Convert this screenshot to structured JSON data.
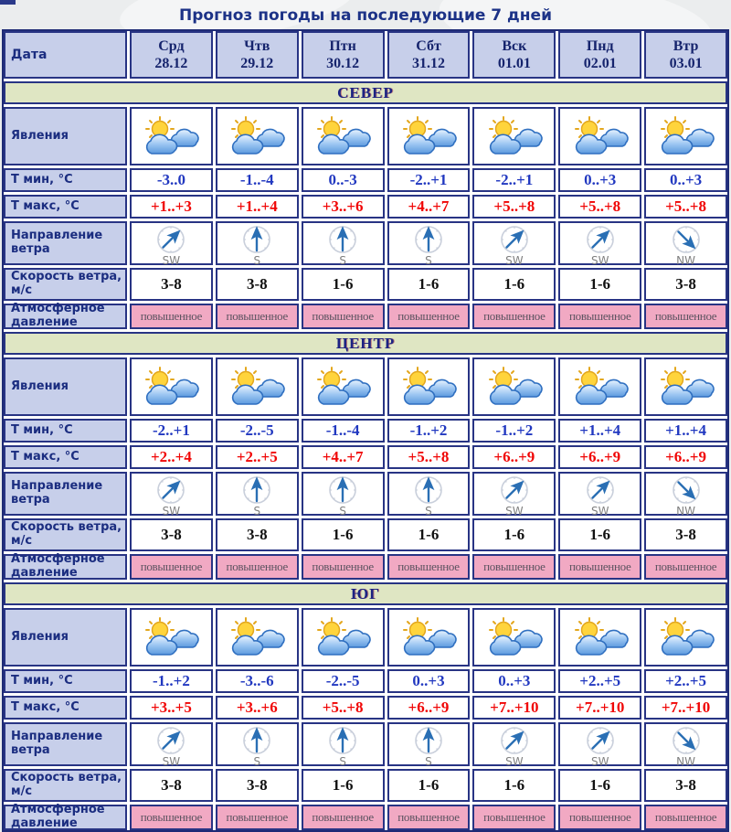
{
  "page": {
    "title": "Прогноз погоды на последующие 7 дней"
  },
  "colors": {
    "border_navy": "#283484",
    "header_bg": "#c7cfea",
    "section_band_bg": "#dfe6c3",
    "pressure_bg": "#f1a9c3",
    "tmin_blue": "#2138c0",
    "tmax_red": "#f00505",
    "title_blue": "#1c3287"
  },
  "table": {
    "date_label": "Дата",
    "days": [
      {
        "name": "Срд",
        "date": "28.12"
      },
      {
        "name": "Чтв",
        "date": "29.12"
      },
      {
        "name": "Птн",
        "date": "30.12"
      },
      {
        "name": "Сбт",
        "date": "31.12"
      },
      {
        "name": "Вск",
        "date": "01.01"
      },
      {
        "name": "Пнд",
        "date": "02.01"
      },
      {
        "name": "Втр",
        "date": "03.01"
      }
    ],
    "row_labels": {
      "phenomena": "Явления",
      "tmin": "Т мин, °С",
      "tmax": "Т макс, °С",
      "wind_dir": "Направление ветра",
      "wind_speed": "Скорость ветра, м/с",
      "pressure": "Атмосферное давление"
    },
    "phenomena_icon": "sun-behind-clouds-icon",
    "sections": [
      {
        "name": "СЕВЕР",
        "tmin": [
          "-3..0",
          "-1..-4",
          "0..-3",
          "-2..+1",
          "-2..+1",
          "0..+3",
          "0..+3"
        ],
        "tmax": [
          "+1..+3",
          "+1..+4",
          "+3..+6",
          "+4..+7",
          "+5..+8",
          "+5..+8",
          "+5..+8"
        ],
        "wind_dir": [
          "SW",
          "S",
          "S",
          "S",
          "SW",
          "SW",
          "NW"
        ],
        "wind_speed": [
          "3-8",
          "3-8",
          "1-6",
          "1-6",
          "1-6",
          "1-6",
          "3-8"
        ],
        "pressure": [
          "повышенное",
          "повышенное",
          "повышенное",
          "повышенное",
          "повышенное",
          "повышенное",
          "повышенное"
        ]
      },
      {
        "name": "ЦЕНТР",
        "tmin": [
          "-2..+1",
          "-2..-5",
          "-1..-4",
          "-1..+2",
          "-1..+2",
          "+1..+4",
          "+1..+4"
        ],
        "tmax": [
          "+2..+4",
          "+2..+5",
          "+4..+7",
          "+5..+8",
          "+6..+9",
          "+6..+9",
          "+6..+9"
        ],
        "wind_dir": [
          "SW",
          "S",
          "S",
          "S",
          "SW",
          "SW",
          "NW"
        ],
        "wind_speed": [
          "3-8",
          "3-8",
          "1-6",
          "1-6",
          "1-6",
          "1-6",
          "3-8"
        ],
        "pressure": [
          "повышенное",
          "повышенное",
          "повышенное",
          "повышенное",
          "повышенное",
          "повышенное",
          "повышенное"
        ]
      },
      {
        "name": "ЮГ",
        "tmin": [
          "-1..+2",
          "-3..-6",
          "-2..-5",
          "0..+3",
          "0..+3",
          "+2..+5",
          "+2..+5"
        ],
        "tmax": [
          "+3..+5",
          "+3..+6",
          "+5..+8",
          "+6..+9",
          "+7..+10",
          "+7..+10",
          "+7..+10"
        ],
        "wind_dir": [
          "SW",
          "S",
          "S",
          "S",
          "SW",
          "SW",
          "NW"
        ],
        "wind_speed": [
          "3-8",
          "3-8",
          "1-6",
          "1-6",
          "1-6",
          "1-6",
          "3-8"
        ],
        "pressure": [
          "повышенное",
          "повышенное",
          "повышенное",
          "повышенное",
          "повышенное",
          "повышенное",
          "повышенное"
        ]
      }
    ]
  }
}
